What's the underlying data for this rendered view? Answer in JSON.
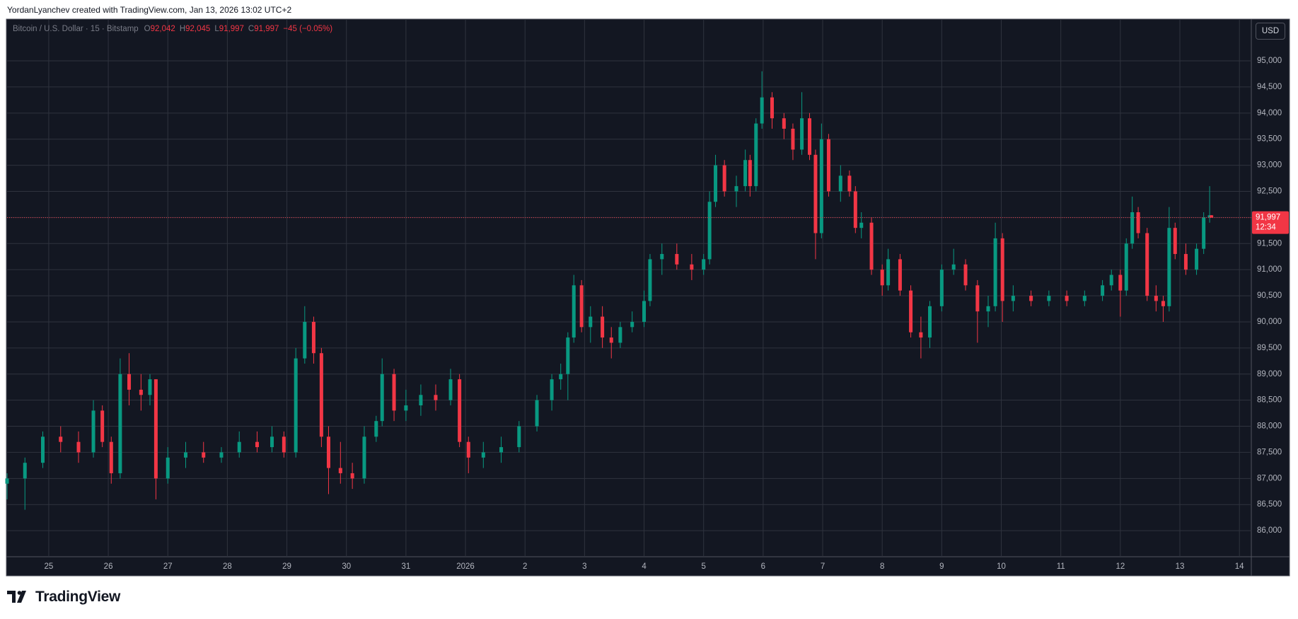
{
  "header": {
    "attribution": "YordanLyanchev created with TradingView.com, Jan 13, 2026 13:02 UTC+2"
  },
  "footer": {
    "brand": "TradingView"
  },
  "chart_data": {
    "type": "candlestick",
    "legend": {
      "symbol": "Bitcoin / U.S. Dollar · 15 · Bitstamp",
      "fields": [
        {
          "key": "O",
          "value": "92,042"
        },
        {
          "key": "H",
          "value": "92,045"
        },
        {
          "key": "L",
          "value": "91,997"
        },
        {
          "key": "C",
          "value": "91,997"
        }
      ],
      "change": "−45 (−0.05%)"
    },
    "currency": "USD",
    "last_price_label": "91,997",
    "countdown": "12:34",
    "up_color": "#089981",
    "down_color": "#f23645",
    "grid": true,
    "xlim": [
      -0.7,
      20.2
    ],
    "xticks": [
      {
        "value": 0,
        "label": "25"
      },
      {
        "value": 1,
        "label": "26"
      },
      {
        "value": 2,
        "label": "27"
      },
      {
        "value": 3,
        "label": "28"
      },
      {
        "value": 4,
        "label": "29"
      },
      {
        "value": 5,
        "label": "30"
      },
      {
        "value": 6,
        "label": "31"
      },
      {
        "value": 7,
        "label": "2026"
      },
      {
        "value": 8,
        "label": "2"
      },
      {
        "value": 9,
        "label": "3"
      },
      {
        "value": 10,
        "label": "4"
      },
      {
        "value": 11,
        "label": "5"
      },
      {
        "value": 12,
        "label": "6"
      },
      {
        "value": 13,
        "label": "7"
      },
      {
        "value": 14,
        "label": "8"
      },
      {
        "value": 15,
        "label": "9"
      },
      {
        "value": 16,
        "label": "10"
      },
      {
        "value": 17,
        "label": "11"
      },
      {
        "value": 18,
        "label": "12"
      },
      {
        "value": 19,
        "label": "13"
      },
      {
        "value": 20,
        "label": "14"
      }
    ],
    "ylim": [
      85500,
      95800
    ],
    "yticks": [
      {
        "value": 86000,
        "label": "86,000"
      },
      {
        "value": 86500,
        "label": "86,500"
      },
      {
        "value": 87000,
        "label": "87,000"
      },
      {
        "value": 87500,
        "label": "87,500"
      },
      {
        "value": 88000,
        "label": "88,000"
      },
      {
        "value": 88500,
        "label": "88,500"
      },
      {
        "value": 89000,
        "label": "89,000"
      },
      {
        "value": 89500,
        "label": "89,500"
      },
      {
        "value": 90000,
        "label": "90,000"
      },
      {
        "value": 90500,
        "label": "90,500"
      },
      {
        "value": 91000,
        "label": "91,000"
      },
      {
        "value": 91500,
        "label": "91,500"
      },
      {
        "value": 92000,
        "label": "92,000"
      },
      {
        "value": 92500,
        "label": "92,500"
      },
      {
        "value": 93000,
        "label": "93,000"
      },
      {
        "value": 93500,
        "label": "93,500"
      },
      {
        "value": 94000,
        "label": "94,000"
      },
      {
        "value": 94500,
        "label": "94,500"
      },
      {
        "value": 95000,
        "label": "95,000"
      }
    ],
    "x": [
      -0.7,
      -0.4,
      -0.1,
      0.2,
      0.5,
      0.75,
      0.9,
      1.05,
      1.2,
      1.35,
      1.55,
      1.7,
      1.8,
      2.0,
      2.3,
      2.6,
      2.9,
      3.2,
      3.5,
      3.75,
      3.95,
      4.15,
      4.3,
      4.45,
      4.58,
      4.7,
      4.9,
      5.1,
      5.3,
      5.5,
      5.6,
      5.8,
      6.0,
      6.25,
      6.5,
      6.75,
      6.9,
      7.05,
      7.3,
      7.6,
      7.9,
      8.2,
      8.45,
      8.6,
      8.72,
      8.82,
      8.95,
      9.1,
      9.3,
      9.45,
      9.6,
      9.8,
      10.0,
      10.1,
      10.3,
      10.55,
      10.8,
      11.0,
      11.1,
      11.2,
      11.35,
      11.55,
      11.7,
      11.78,
      11.88,
      11.98,
      12.15,
      12.35,
      12.5,
      12.65,
      12.78,
      12.88,
      12.98,
      13.1,
      13.3,
      13.45,
      13.55,
      13.65,
      13.82,
      14.0,
      14.1,
      14.3,
      14.48,
      14.65,
      14.8,
      15.0,
      15.2,
      15.4,
      15.6,
      15.78,
      15.9,
      16.02,
      16.2,
      16.5,
      16.8,
      17.1,
      17.4,
      17.7,
      17.85,
      18.0,
      18.1,
      18.2,
      18.3,
      18.45,
      18.6,
      18.72,
      18.82,
      18.92,
      19.1,
      19.28,
      19.4,
      19.5,
      19.53
    ],
    "open": [
      86900,
      87000,
      87300,
      87800,
      87700,
      87500,
      88300,
      87700,
      87100,
      89000,
      88700,
      88600,
      88900,
      87000,
      87400,
      87500,
      87400,
      87500,
      87700,
      87600,
      87800,
      87500,
      89300,
      90000,
      89400,
      87800,
      87200,
      87100,
      87000,
      87800,
      88100,
      89000,
      88300,
      88400,
      88600,
      88500,
      88900,
      87700,
      87400,
      87500,
      87600,
      88000,
      88500,
      88900,
      89000,
      89700,
      90700,
      89900,
      90100,
      89700,
      89600,
      89900,
      90000,
      90400,
      91200,
      91300,
      91100,
      91000,
      91200,
      92300,
      93000,
      92500,
      92600,
      93100,
      92600,
      93800,
      94300,
      93900,
      93700,
      93300,
      93900,
      93200,
      91700,
      93500,
      92500,
      92800,
      92500,
      91800,
      91900,
      91000,
      90700,
      91200,
      90600,
      89800,
      89700,
      90300,
      91000,
      91100,
      90700,
      90200,
      90300,
      91600,
      90400,
      90500,
      90400,
      90500,
      90400,
      90500,
      90700,
      90900,
      90600,
      91500,
      92100,
      91700,
      90500,
      90400,
      90300,
      91800,
      91300,
      91000,
      91400,
      92000,
      92042
    ],
    "high": [
      87100,
      87400,
      87900,
      88000,
      87900,
      88500,
      88400,
      87800,
      89300,
      89400,
      89000,
      89000,
      88900,
      87600,
      87700,
      87700,
      87600,
      87900,
      87900,
      88000,
      87900,
      89500,
      90300,
      90100,
      89500,
      88000,
      87700,
      87300,
      88000,
      88200,
      89300,
      89100,
      88700,
      88800,
      88800,
      89100,
      89000,
      87800,
      87700,
      87800,
      88100,
      88600,
      89000,
      89200,
      89800,
      90900,
      90800,
      90300,
      90300,
      89900,
      90000,
      90200,
      90600,
      91300,
      91500,
      91500,
      91300,
      91300,
      92500,
      93200,
      93100,
      92800,
      93300,
      93200,
      93900,
      94800,
      94400,
      94000,
      93800,
      94400,
      94000,
      93300,
      93800,
      93600,
      93000,
      92900,
      92600,
      92100,
      92000,
      91100,
      91400,
      91300,
      90700,
      90100,
      90400,
      91100,
      91400,
      91200,
      90800,
      90500,
      91900,
      91700,
      90700,
      90600,
      90600,
      90600,
      90600,
      90800,
      91000,
      91000,
      91600,
      92400,
      92200,
      91800,
      90700,
      90500,
      92200,
      91900,
      91500,
      91500,
      92100,
      92600,
      92045
    ],
    "low": [
      86600,
      86400,
      87200,
      87500,
      87300,
      87400,
      87600,
      86900,
      87000,
      88400,
      88300,
      88400,
      86600,
      86900,
      87200,
      87300,
      87300,
      87400,
      87500,
      87500,
      87400,
      87400,
      89200,
      89200,
      87600,
      86700,
      86900,
      86800,
      86900,
      87700,
      88000,
      88100,
      88100,
      88200,
      88300,
      88400,
      87600,
      87100,
      87200,
      87300,
      87500,
      87900,
      88300,
      88700,
      88500,
      89600,
      89800,
      89600,
      89500,
      89300,
      89500,
      89800,
      89900,
      90300,
      90900,
      91000,
      90800,
      90900,
      91100,
      92200,
      92400,
      92200,
      92500,
      92400,
      92500,
      93700,
      93700,
      93500,
      93100,
      93200,
      93100,
      91200,
      91600,
      92400,
      92300,
      92400,
      91700,
      91600,
      90900,
      90500,
      90600,
      90500,
      89700,
      89300,
      89500,
      90200,
      90900,
      90600,
      89600,
      89900,
      90200,
      90000,
      90200,
      90300,
      90300,
      90300,
      90300,
      90400,
      90600,
      90100,
      90500,
      91400,
      91600,
      90400,
      90200,
      90000,
      90200,
      91200,
      90900,
      90900,
      91300,
      91900,
      91997
    ],
    "close": [
      87000,
      87300,
      87800,
      87700,
      87500,
      88300,
      87700,
      87100,
      89000,
      88700,
      88600,
      88900,
      87000,
      87400,
      87500,
      87400,
      87500,
      87700,
      87600,
      87800,
      87500,
      89300,
      90000,
      89400,
      87800,
      87200,
      87100,
      87000,
      87800,
      88100,
      89000,
      88300,
      88400,
      88600,
      88500,
      88900,
      87700,
      87400,
      87500,
      87600,
      88000,
      88500,
      88900,
      89000,
      89700,
      90700,
      89900,
      90100,
      89700,
      89600,
      89900,
      90000,
      90400,
      91200,
      91300,
      91100,
      91000,
      91200,
      92300,
      93000,
      92500,
      92600,
      93100,
      92600,
      93800,
      94300,
      93900,
      93700,
      93300,
      93900,
      93200,
      91700,
      93500,
      92500,
      92800,
      92500,
      91800,
      91900,
      91000,
      90700,
      91200,
      90600,
      89800,
      89700,
      90300,
      91000,
      91100,
      90700,
      90200,
      90300,
      91600,
      90400,
      90500,
      90400,
      90500,
      90400,
      90500,
      90700,
      90900,
      90600,
      91500,
      92100,
      91700,
      90500,
      90400,
      90300,
      91800,
      91300,
      91000,
      91400,
      92000,
      92042,
      91997
    ]
  }
}
